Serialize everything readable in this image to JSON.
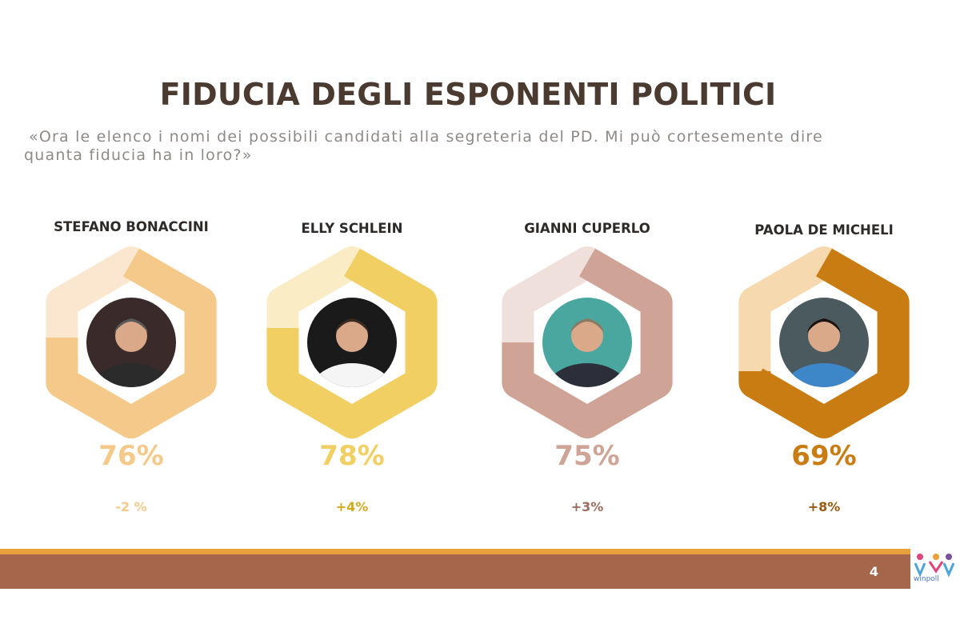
{
  "title": "FIDUCIA DEGLI ESPONENTI POLITICI",
  "subtitle": {
    "line1": "«Ora le elenco i nomi dei possibili candidati alla segreteria del PD. Mi può cortesemente dire",
    "line2": "quanta fiducia ha in loro?»"
  },
  "page_number": "4",
  "logo_text": "winpoll",
  "chart_data": {
    "type": "donut",
    "unit": "%",
    "max": 100,
    "candidates": [
      {
        "name": "STEFANO BONACCINI",
        "value": 76,
        "value_label": "76%",
        "change": "-2 %",
        "primary_color": "#f5c98a",
        "secondary_color": "#fbe7cf",
        "text_color": "#f5c98a",
        "change_color": "#f5c98a",
        "photo": "person-photo-bonaccini"
      },
      {
        "name": "ELLY SCHLEIN",
        "value": 78,
        "value_label": "78%",
        "change": "+4%",
        "primary_color": "#f1cf63",
        "secondary_color": "#faedc6",
        "text_color": "#f1cf63",
        "change_color": "#d4a91e",
        "photo": "person-photo-schlein"
      },
      {
        "name": "GIANNI CUPERLO",
        "value": 75,
        "value_label": "75%",
        "change": "+3%",
        "primary_color": "#cfa497",
        "secondary_color": "#f0e0dc",
        "text_color": "#cfa497",
        "change_color": "#9a6d5e",
        "photo": "person-photo-cuperlo"
      },
      {
        "name": "PAOLA DE MICHELI",
        "value": 69,
        "value_label": "69%",
        "change": "+8%",
        "primary_color": "#c97c12",
        "secondary_color": "#f6d9ae",
        "text_color": "#c97c12",
        "change_color": "#9a5a10",
        "photo": "person-photo-demicheli"
      }
    ]
  }
}
